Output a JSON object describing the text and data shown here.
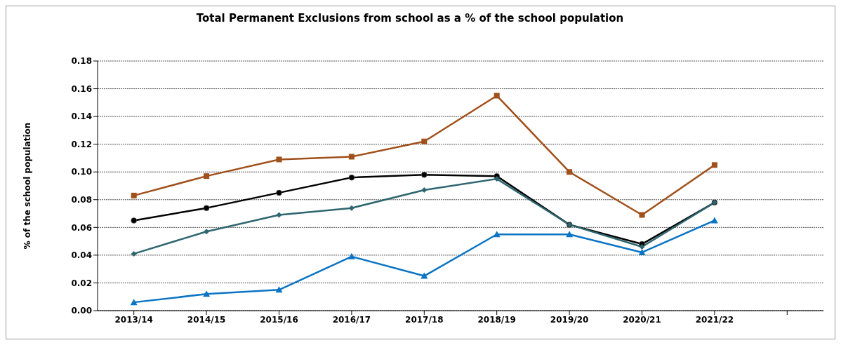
{
  "chart_data": {
    "type": "line",
    "title": "Total Permanent Exclusions from school as a % of the school population",
    "ylabel": "% of the school population",
    "categories": [
      "2013/14",
      "2014/15",
      "2015/16",
      "2016/17",
      "2017/18",
      "2018/19",
      "2019/20",
      "2020/21",
      "2021/22",
      null
    ],
    "series": [
      {
        "color": "#a0501a",
        "marker": "square",
        "values": [
          0.083,
          0.097,
          0.109,
          0.111,
          0.122,
          0.155,
          0.1,
          0.069,
          0.105,
          null
        ]
      },
      {
        "color": "#000000",
        "marker": "circle",
        "values": [
          0.065,
          0.074,
          0.085,
          0.096,
          0.098,
          0.097,
          0.062,
          0.048,
          0.078,
          null
        ]
      },
      {
        "color": "#2e6670",
        "marker": "diamond",
        "values": [
          0.041,
          0.057,
          0.069,
          0.074,
          0.087,
          0.095,
          0.062,
          0.046,
          0.078,
          null
        ]
      },
      {
        "color": "#0b74c4",
        "marker": "triangle",
        "values": [
          0.006,
          0.012,
          0.015,
          0.039,
          0.025,
          0.055,
          0.055,
          0.042,
          0.065,
          null
        ]
      }
    ],
    "ylim": [
      0,
      0.18
    ],
    "yticks": [
      {
        "value": 0,
        "label": "0.00"
      },
      {
        "value": 0.02,
        "label": "0.02"
      },
      {
        "value": 0.04,
        "label": "0.04"
      },
      {
        "value": 0.06,
        "label": "0.06"
      },
      {
        "value": 0.08,
        "label": "0.08"
      },
      {
        "value": 0.1,
        "label": "0.10"
      },
      {
        "value": 0.12,
        "label": "0.12"
      },
      {
        "value": 0.14,
        "label": "0.14"
      },
      {
        "value": 0.16,
        "label": "0.16"
      },
      {
        "value": 0.18,
        "label": "0.18"
      }
    ],
    "grid": "y",
    "line_style": "solid"
  }
}
